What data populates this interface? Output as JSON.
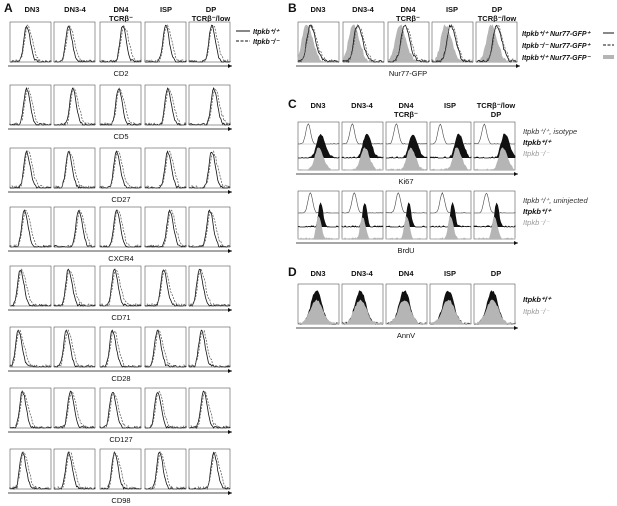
{
  "panels": {
    "A": {
      "letter": "A",
      "columns": [
        "DN3",
        "DN3-4",
        "DN4\nTCRβ⁻",
        "ISP",
        "DP\nTCRβ⁻/low"
      ],
      "rows": [
        "CD2",
        "CD5",
        "CD27",
        "CXCR4",
        "CD71",
        "CD28",
        "CD127",
        "CD98"
      ],
      "legend": [
        {
          "label": "Itpkb⁺/⁺",
          "style": "solid"
        },
        {
          "label": "Itpkb⁻/⁻",
          "style": "dashed"
        }
      ]
    },
    "B": {
      "letter": "B",
      "columns": [
        "DN3",
        "DN3-4",
        "DN4\nTCRβ⁻",
        "ISP",
        "DP\nTCRβ⁻/low"
      ],
      "axis": "Nur77-GFP",
      "legend": [
        {
          "label": "Itpkb⁺/⁺ Nur77-GFP⁺",
          "style": "solid"
        },
        {
          "label": "Itpkb⁻/⁻ Nur77-GFP⁺",
          "style": "dashed"
        },
        {
          "label": "Itpkb⁺/⁺ Nur77-GFP⁻",
          "style": "gray"
        }
      ]
    },
    "C": {
      "letter": "C",
      "columns": [
        "DN3",
        "DN3-4",
        "DN4\nTCRβ⁻",
        "ISP",
        "TCRβ⁻/low\nDP"
      ],
      "rows": [
        {
          "axis": "Ki67",
          "legend": [
            "Itpkb⁺/⁺, isotype",
            "Itpkb⁺/⁺",
            "Itpkb⁻/⁻"
          ]
        },
        {
          "axis": "BrdU",
          "legend": [
            "Itpkb⁺/⁺, uninjected",
            "Itpkb⁺/⁺",
            "Itpkb⁻/⁻"
          ]
        }
      ]
    },
    "D": {
      "letter": "D",
      "columns": [
        "DN3",
        "DN3-4",
        "DN4",
        "ISP",
        "DP"
      ],
      "axis": "AnnV",
      "legend": [
        "Itpkb⁺/⁺",
        "Itpkb⁻/⁻"
      ]
    }
  }
}
